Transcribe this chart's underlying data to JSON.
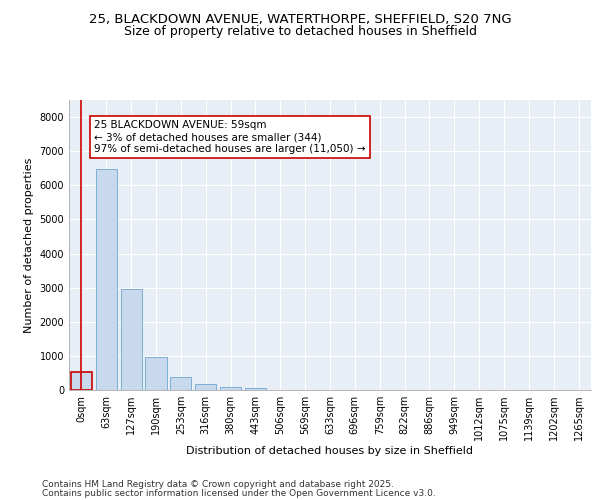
{
  "title_line1": "25, BLACKDOWN AVENUE, WATERTHORPE, SHEFFIELD, S20 7NG",
  "title_line2": "Size of property relative to detached houses in Sheffield",
  "xlabel": "Distribution of detached houses by size in Sheffield",
  "ylabel": "Number of detached properties",
  "bar_color": "#c8d9ee",
  "bar_edge_color": "#7bafd4",
  "plot_bg_color": "#e8eef5",
  "annotation_box_color": "#cc0000",
  "annotation_text": "25 BLACKDOWN AVENUE: 59sqm\n← 3% of detached houses are smaller (344)\n97% of semi-detached houses are larger (11,050) →",
  "categories": [
    "0sqm",
    "63sqm",
    "127sqm",
    "190sqm",
    "253sqm",
    "316sqm",
    "380sqm",
    "443sqm",
    "506sqm",
    "569sqm",
    "633sqm",
    "696sqm",
    "759sqm",
    "822sqm",
    "886sqm",
    "949sqm",
    "1012sqm",
    "1075sqm",
    "1139sqm",
    "1202sqm",
    "1265sqm"
  ],
  "values": [
    530,
    6480,
    2970,
    960,
    370,
    175,
    95,
    65,
    0,
    0,
    0,
    0,
    0,
    0,
    0,
    0,
    0,
    0,
    0,
    0,
    0
  ],
  "highlight_bar_index": 0,
  "ylim": [
    0,
    8500
  ],
  "yticks": [
    0,
    1000,
    2000,
    3000,
    4000,
    5000,
    6000,
    7000,
    8000
  ],
  "footer_line1": "Contains HM Land Registry data © Crown copyright and database right 2025.",
  "footer_line2": "Contains public sector information licensed under the Open Government Licence v3.0.",
  "title_fontsize": 9.5,
  "axis_label_fontsize": 8,
  "tick_fontsize": 7,
  "annotation_fontsize": 7.5,
  "footer_fontsize": 6.5
}
